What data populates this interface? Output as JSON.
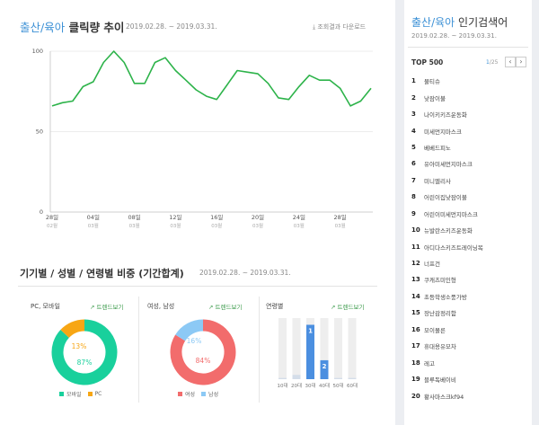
{
  "trend": {
    "keyword": "출산/육아",
    "title": "클릭량 추이",
    "date_range": "2019.02.28. ~ 2019.03.31.",
    "download_label": "조회결과 다운로드"
  },
  "chart_data": [
    {
      "type": "line",
      "title": "클릭량 추이",
      "ylim": [
        0,
        100
      ],
      "y_ticks": [
        0,
        50,
        100
      ],
      "x_tick_labels": [
        {
          "day": "28일",
          "month": "02월"
        },
        {
          "day": "04일",
          "month": "03월"
        },
        {
          "day": "08일",
          "month": "03월"
        },
        {
          "day": "12일",
          "month": "03월"
        },
        {
          "day": "16일",
          "month": "03월"
        },
        {
          "day": "20일",
          "month": "03월"
        },
        {
          "day": "24일",
          "month": "03월"
        },
        {
          "day": "28일",
          "month": "03월"
        }
      ],
      "x": [
        "02.28",
        "03.01",
        "03.02",
        "03.03",
        "03.04",
        "03.05",
        "03.06",
        "03.07",
        "03.08",
        "03.09",
        "03.10",
        "03.11",
        "03.12",
        "03.13",
        "03.14",
        "03.15",
        "03.16",
        "03.17",
        "03.18",
        "03.19",
        "03.20",
        "03.21",
        "03.22",
        "03.23",
        "03.24",
        "03.25",
        "03.26",
        "03.27",
        "03.28",
        "03.29",
        "03.30",
        "03.31"
      ],
      "series": [
        {
          "color": "#2db34a",
          "values": [
            66,
            68,
            69,
            78,
            81,
            93,
            100,
            93,
            80,
            80,
            93,
            96,
            88,
            82,
            76,
            72,
            70,
            79,
            88,
            87,
            86,
            80,
            71,
            70,
            78,
            85,
            82,
            82,
            77,
            66,
            69,
            77
          ]
        }
      ]
    },
    {
      "type": "pie",
      "title": "PC, 모바일",
      "labels": [
        "모바일",
        "PC"
      ],
      "values": [
        87,
        13
      ],
      "colors": [
        "#19d09c",
        "#f7a614"
      ]
    },
    {
      "type": "pie",
      "title": "여성, 남성",
      "labels": [
        "여성",
        "남성"
      ],
      "values": [
        84,
        16
      ],
      "colors": [
        "#f26c6c",
        "#8cc9f5"
      ]
    },
    {
      "type": "bar",
      "title": "연령별",
      "categories": [
        "10대",
        "20대",
        "30대",
        "40대",
        "50대",
        "60대"
      ],
      "values": [
        2,
        7,
        89,
        31,
        2,
        2
      ],
      "ranks": [
        null,
        null,
        1,
        2,
        null,
        null
      ],
      "ylim": [
        0,
        100
      ]
    }
  ],
  "breakdown": {
    "title": "기기별 / 성별 / 연령별 비중 (기간합계)",
    "date_range": "2019.02.28. ~ 2019.03.31.",
    "trend_button": "트렌드보기",
    "device": {
      "label": "PC, 모바일",
      "pct_mobile": "87%",
      "pct_pc": "13%",
      "legend": [
        "모바일",
        "PC"
      ]
    },
    "gender": {
      "label": "여성, 남성",
      "pct_female": "84%",
      "pct_male": "16%",
      "legend": [
        "여성",
        "남성"
      ]
    },
    "age": {
      "label": "연령별",
      "rank_1": "1",
      "rank_2": "2"
    }
  },
  "popular": {
    "keyword": "출산/육아",
    "title": "인기검색어",
    "date_range": "2019.02.28. ~ 2019.03.31.",
    "top_label": "TOP 500",
    "page_current": "1",
    "page_total": "/25",
    "prev": "‹",
    "next": "›",
    "items": [
      {
        "rank": "1",
        "keyword": "물티슈"
      },
      {
        "rank": "2",
        "keyword": "낮잠이불"
      },
      {
        "rank": "3",
        "keyword": "나이키키즈운동화"
      },
      {
        "rank": "4",
        "keyword": "미세먼지마스크"
      },
      {
        "rank": "5",
        "keyword": "베베드피노"
      },
      {
        "rank": "6",
        "keyword": "유아미세먼지마스크"
      },
      {
        "rank": "7",
        "keyword": "미니멜리사"
      },
      {
        "rank": "8",
        "keyword": "어린이집낮잠이불"
      },
      {
        "rank": "9",
        "keyword": "어린이미세먼지마스크"
      },
      {
        "rank": "10",
        "keyword": "뉴발란스키즈운동화"
      },
      {
        "rank": "11",
        "keyword": "아디다스키즈트레이닝복"
      },
      {
        "rank": "12",
        "keyword": "너프건"
      },
      {
        "rank": "13",
        "keyword": "쿠캐츠미인형"
      },
      {
        "rank": "14",
        "keyword": "초등학생소풍가방"
      },
      {
        "rank": "15",
        "keyword": "장난감정리함"
      },
      {
        "rank": "16",
        "keyword": "모이몰른"
      },
      {
        "rank": "17",
        "keyword": "휴대용유모차"
      },
      {
        "rank": "18",
        "keyword": "레고"
      },
      {
        "rank": "19",
        "keyword": "블루독베이비"
      },
      {
        "rank": "20",
        "keyword": "황사마스크kf94"
      }
    ]
  }
}
